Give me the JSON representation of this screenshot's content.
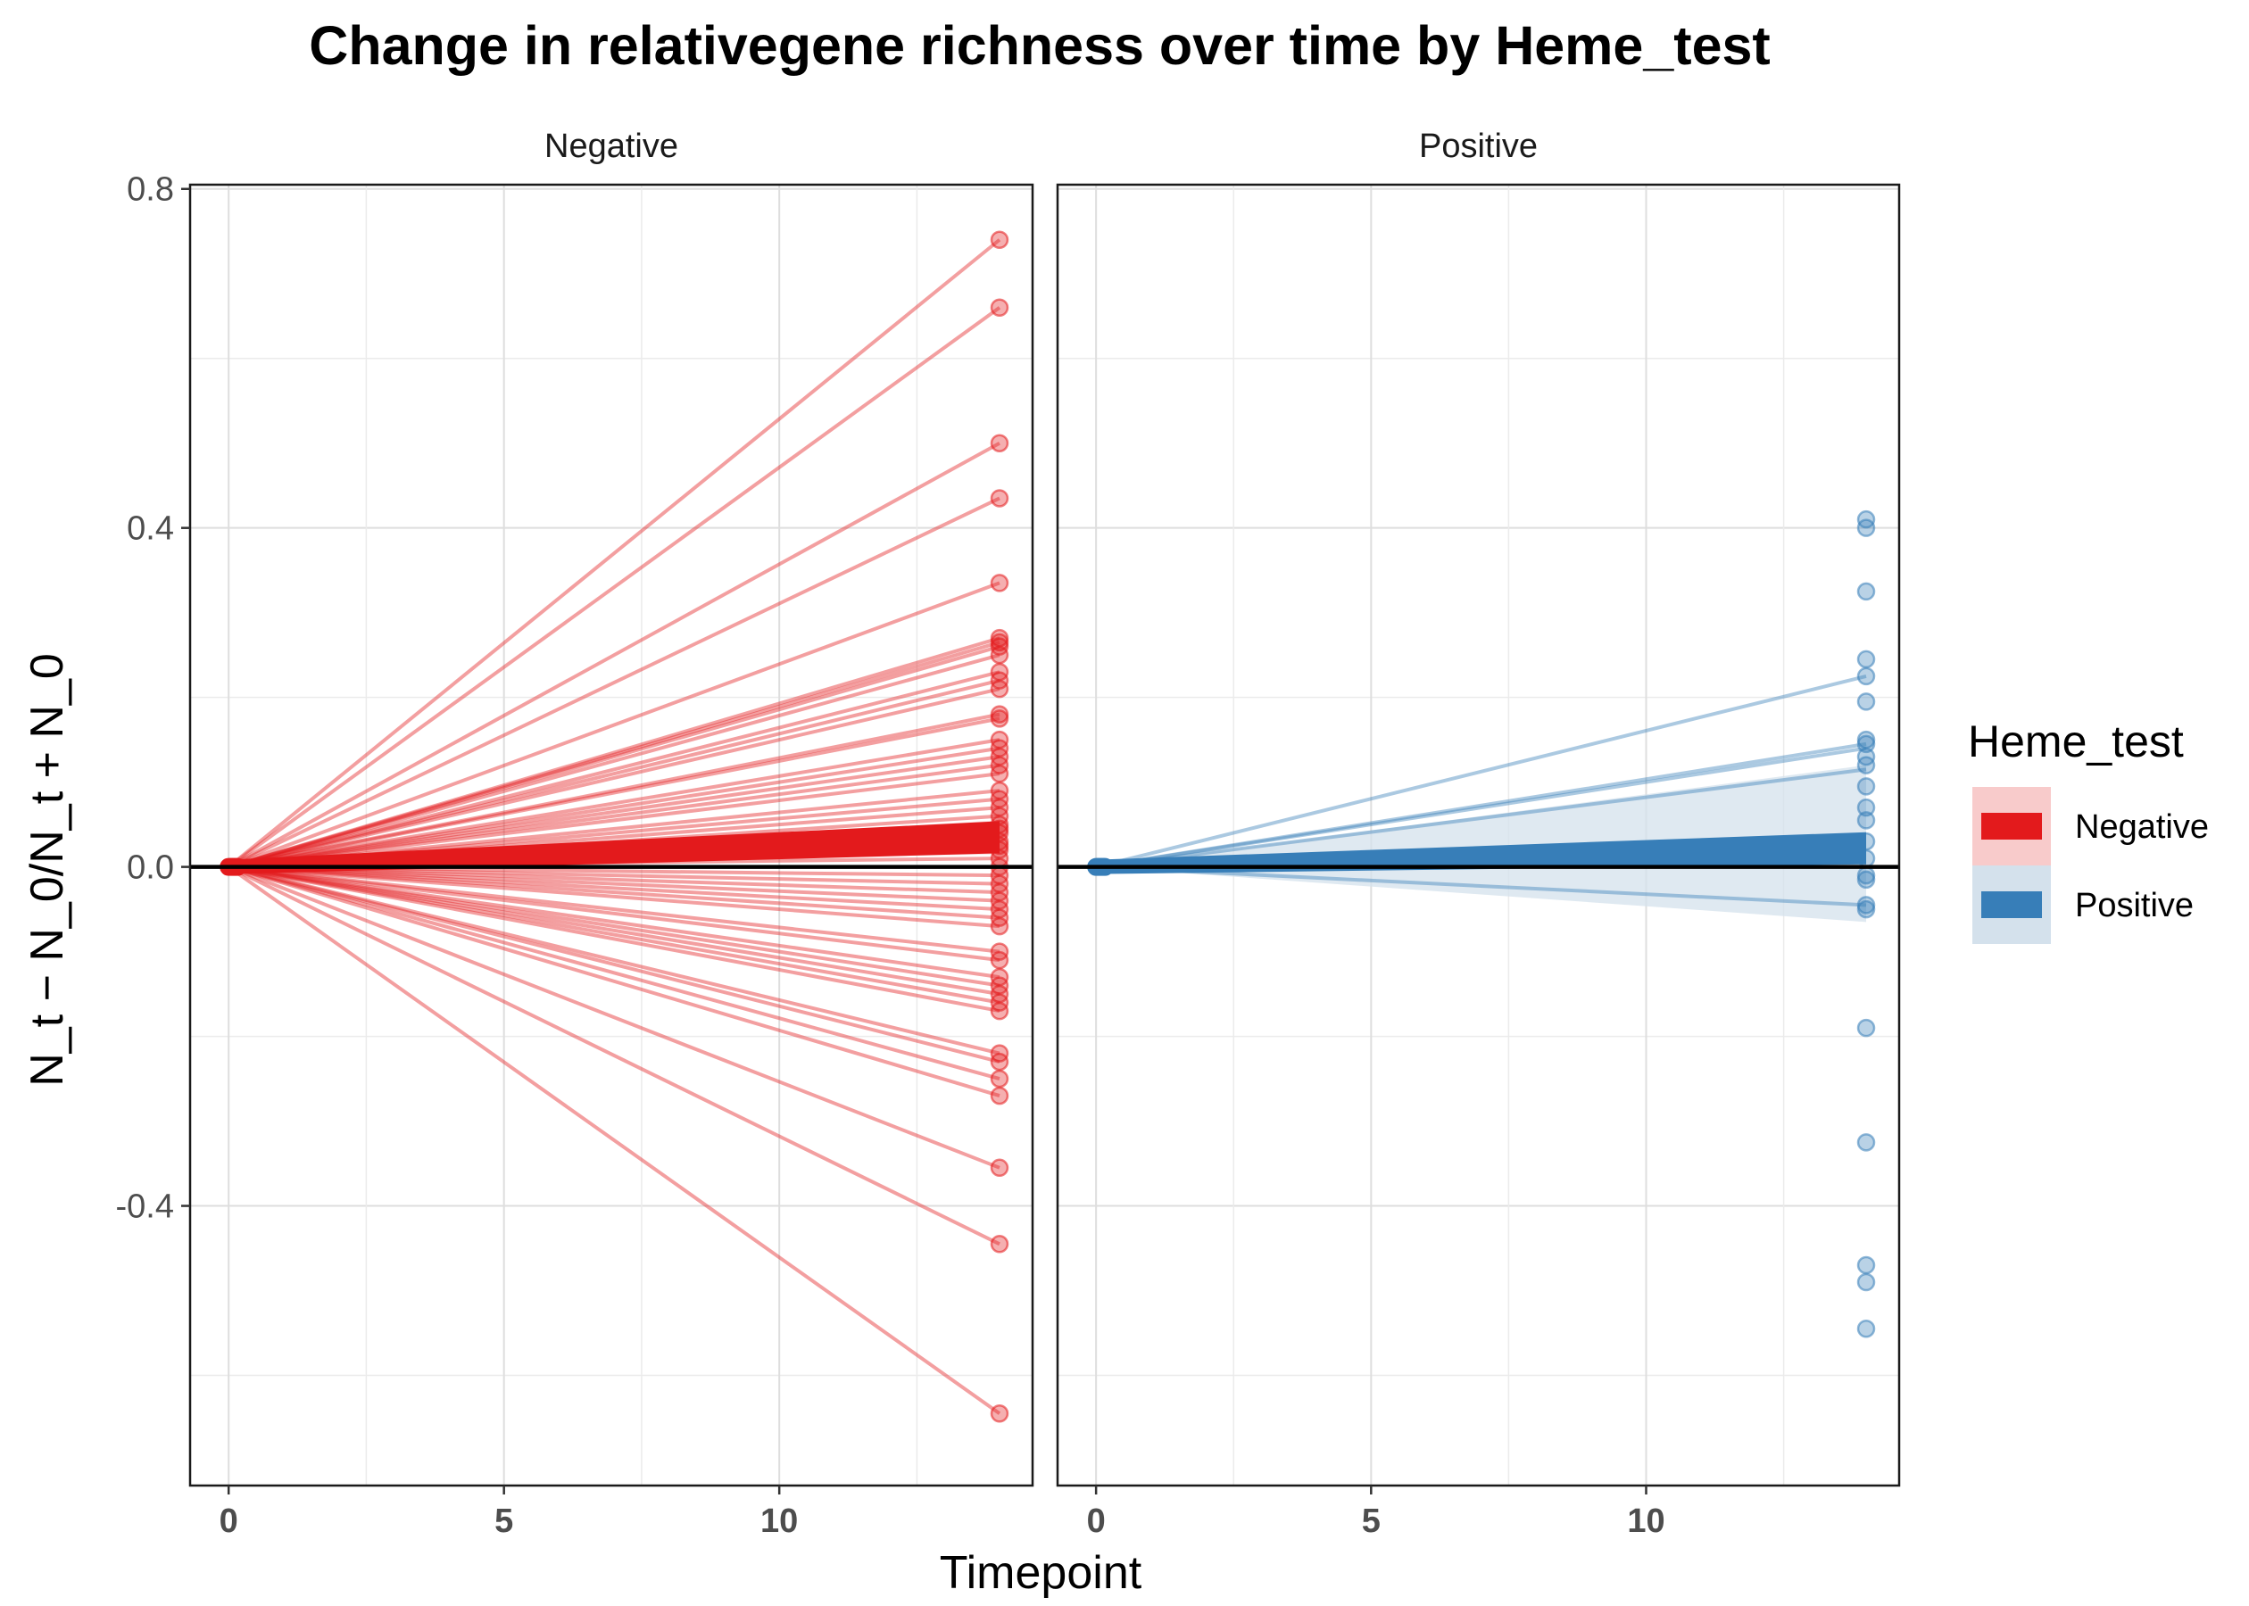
{
  "chart_data": {
    "type": "line",
    "title": "Change in relativegene richness over time by Heme_test",
    "xlabel": "Timepoint",
    "ylabel": "N_t − N_0/N_t + N_0",
    "xlim": [
      -0.7,
      14.6
    ],
    "ylim": [
      -0.73,
      0.805
    ],
    "x_ticks": [
      "0",
      "5",
      "10"
    ],
    "y_ticks": [
      "0.8",
      "0.4",
      "0.0",
      "-0.4"
    ],
    "grid": true,
    "reference_line_y": 0,
    "legend": {
      "title": "Heme_test",
      "position": "right",
      "entries": [
        "Negative",
        "Positive"
      ]
    },
    "facets": [
      {
        "name": "Negative",
        "color": "#E31A1C",
        "fill": "#F8CBCB",
        "end_x": 14,
        "end_values": [
          0.74,
          0.66,
          0.5,
          0.435,
          0.335,
          0.27,
          0.265,
          0.26,
          0.25,
          0.23,
          0.22,
          0.21,
          0.18,
          0.175,
          0.15,
          0.14,
          0.13,
          0.12,
          0.11,
          0.09,
          0.08,
          0.07,
          0.06,
          0.05,
          0.045,
          0.04,
          0.03,
          0.025,
          0.02,
          0.01,
          0.0,
          -0.01,
          -0.02,
          -0.03,
          -0.04,
          -0.05,
          -0.06,
          -0.07,
          -0.1,
          -0.11,
          -0.13,
          -0.14,
          -0.15,
          -0.16,
          -0.17,
          -0.22,
          -0.23,
          -0.25,
          -0.27,
          -0.355,
          -0.445,
          -0.645
        ],
        "trend": {
          "x": [
            0,
            14
          ],
          "y": [
            0,
            0.035
          ],
          "lower": [
            0,
            0.015
          ],
          "upper": [
            0,
            0.055
          ]
        }
      },
      {
        "name": "Positive",
        "color": "#377EB8",
        "fill": "#D4E1EC",
        "end_x": 14,
        "end_values": [
          0.41,
          0.4,
          0.325,
          0.245,
          0.225,
          0.195,
          0.15,
          0.145,
          0.13,
          0.12,
          0.095,
          0.07,
          0.055,
          0.03,
          0.01,
          -0.01,
          -0.015,
          -0.045,
          -0.05,
          -0.19,
          -0.325,
          -0.47,
          -0.49,
          -0.545
        ],
        "lines_to": [
          0.225,
          0.145,
          0.14,
          0.115,
          -0.045
        ],
        "trend": {
          "x": [
            0,
            14
          ],
          "y": [
            0,
            0.022
          ],
          "lower": [
            0,
            -0.065
          ],
          "upper": [
            0,
            0.12
          ]
        }
      }
    ]
  }
}
